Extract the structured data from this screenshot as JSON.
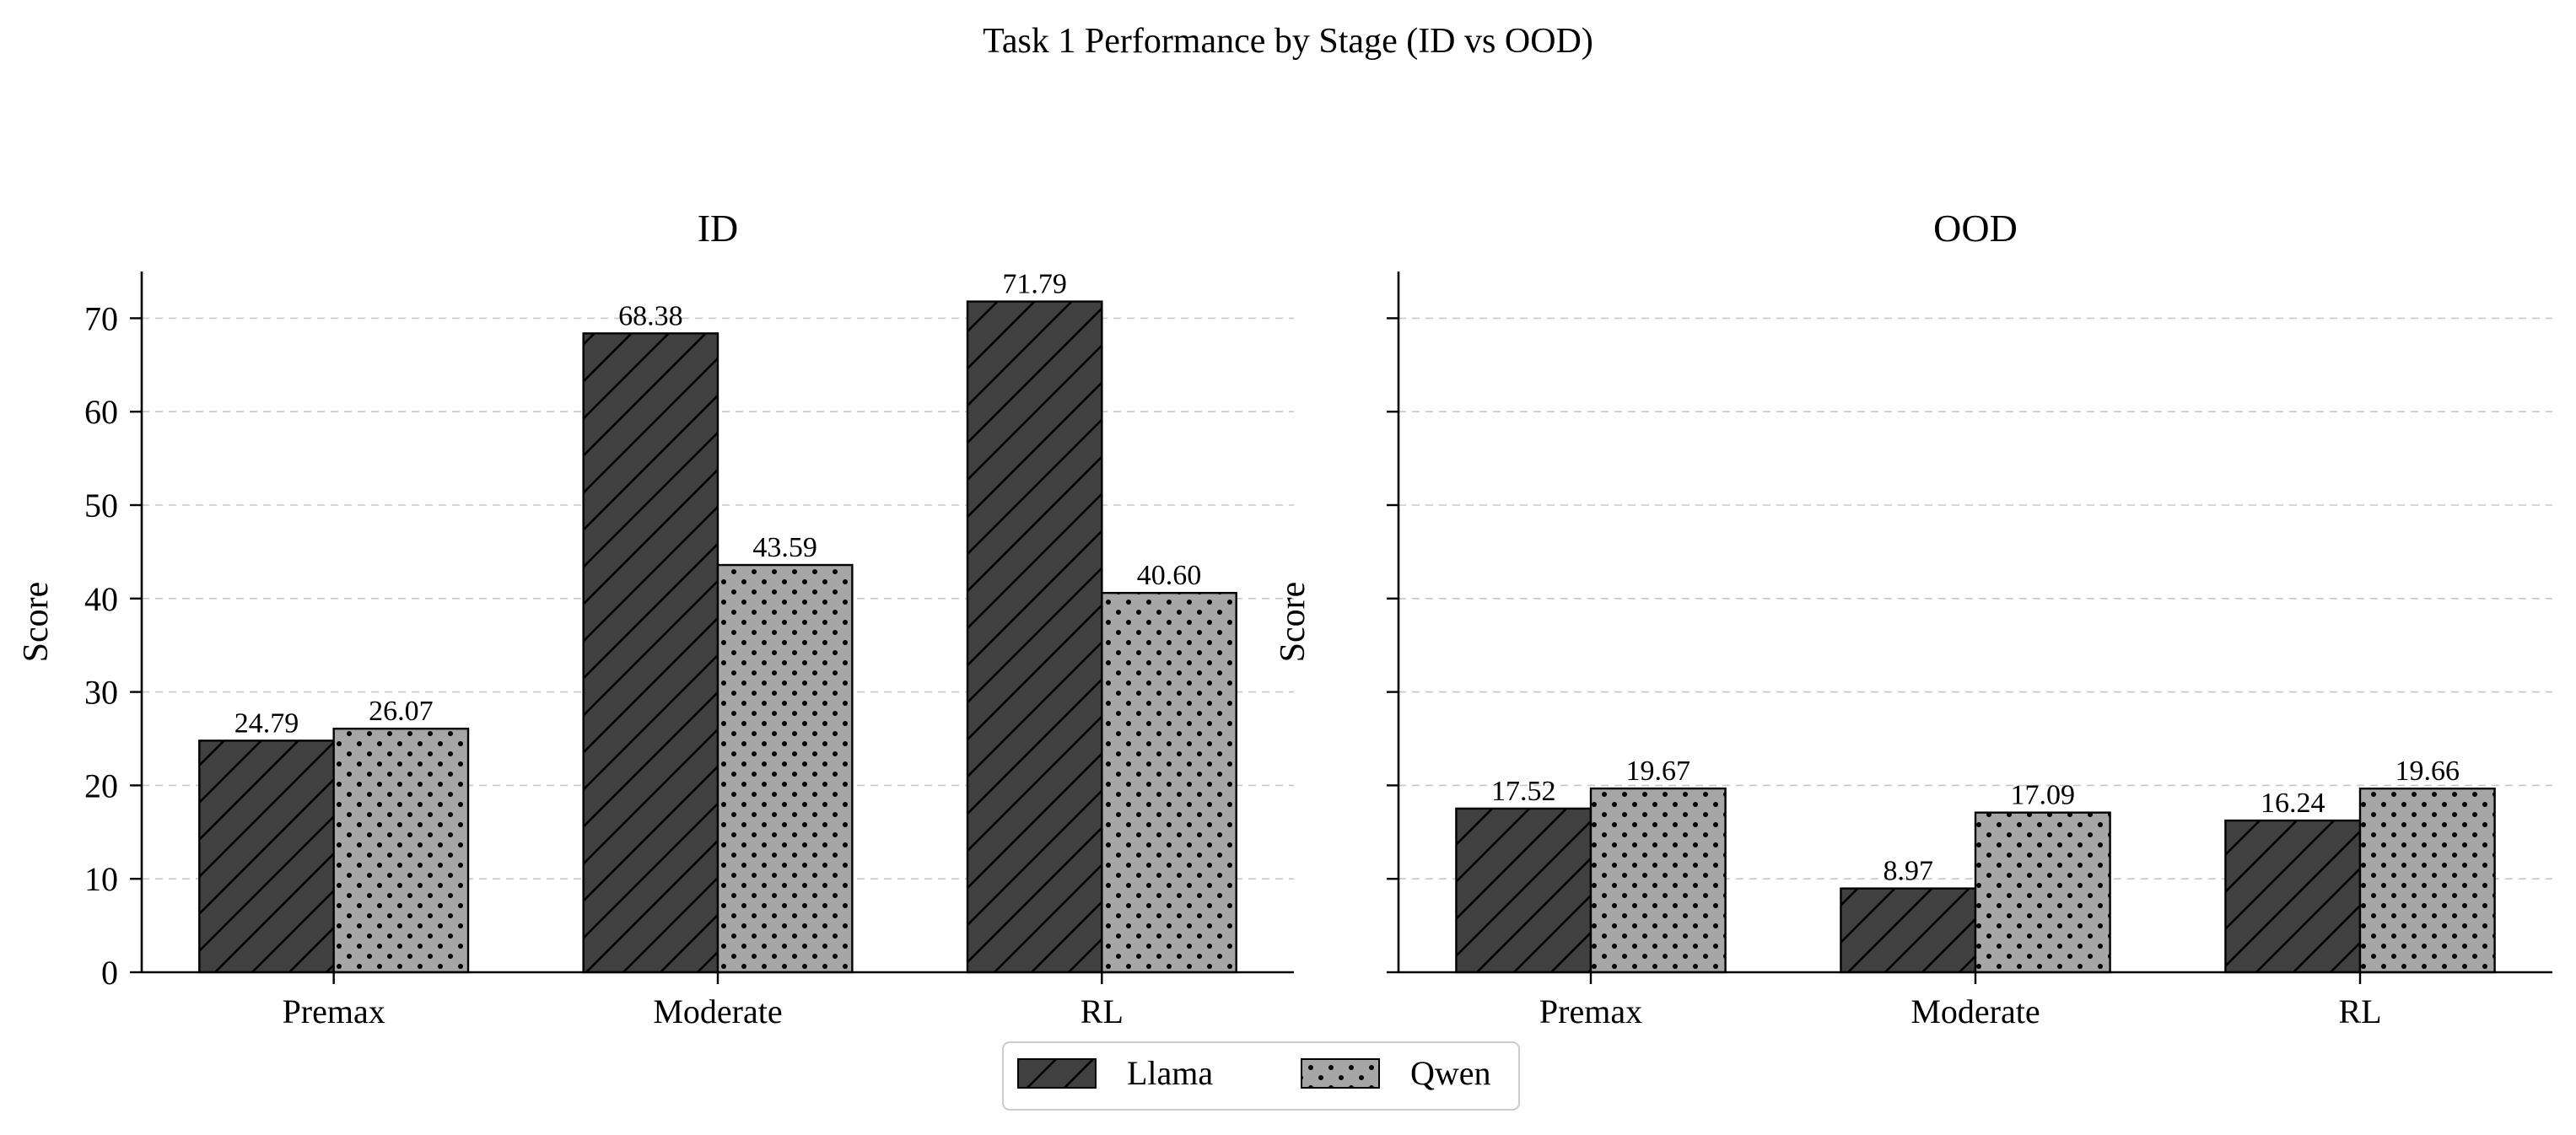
{
  "figure": {
    "title": "Task 1 Performance by Stage (ID vs OOD)"
  },
  "chart_data": [
    {
      "type": "bar",
      "title": "ID",
      "xlabel": "",
      "ylabel": "Score",
      "categories": [
        "Premax",
        "Moderate",
        "RL"
      ],
      "series": [
        {
          "name": "Llama",
          "values": [
            24.79,
            68.38,
            71.79
          ]
        },
        {
          "name": "Qwen",
          "values": [
            26.07,
            43.59,
            40.6
          ]
        }
      ],
      "data_labels": {
        "Llama": [
          "24.79",
          "68.38",
          "71.79"
        ],
        "Qwen": [
          "26.07",
          "43.59",
          "40.60"
        ]
      },
      "ylim": [
        0,
        75
      ],
      "yticks": [
        "0",
        "10",
        "20",
        "30",
        "40",
        "50",
        "60",
        "70"
      ],
      "grid": "y-dashed",
      "legend": "bottom-center"
    },
    {
      "type": "bar",
      "title": "OOD",
      "xlabel": "",
      "ylabel": "Score",
      "categories": [
        "Premax",
        "Moderate",
        "RL"
      ],
      "series": [
        {
          "name": "Llama",
          "values": [
            17.52,
            8.97,
            16.24
          ]
        },
        {
          "name": "Qwen",
          "values": [
            19.67,
            17.09,
            19.66
          ]
        }
      ],
      "data_labels": {
        "Llama": [
          "17.52",
          "8.97",
          "16.24"
        ],
        "Qwen": [
          "19.67",
          "17.09",
          "19.66"
        ]
      },
      "ylim": [
        0,
        75
      ],
      "yticks": [
        "0",
        "10",
        "20",
        "30",
        "40",
        "50",
        "60",
        "70"
      ],
      "grid": "y-dashed",
      "legend": "bottom-center"
    }
  ],
  "legend": {
    "items": [
      {
        "name": "Llama",
        "color": "#404040",
        "pattern": "diagonal-hatch"
      },
      {
        "name": "Qwen",
        "color": "#a6a6a6",
        "pattern": "dots"
      }
    ]
  }
}
